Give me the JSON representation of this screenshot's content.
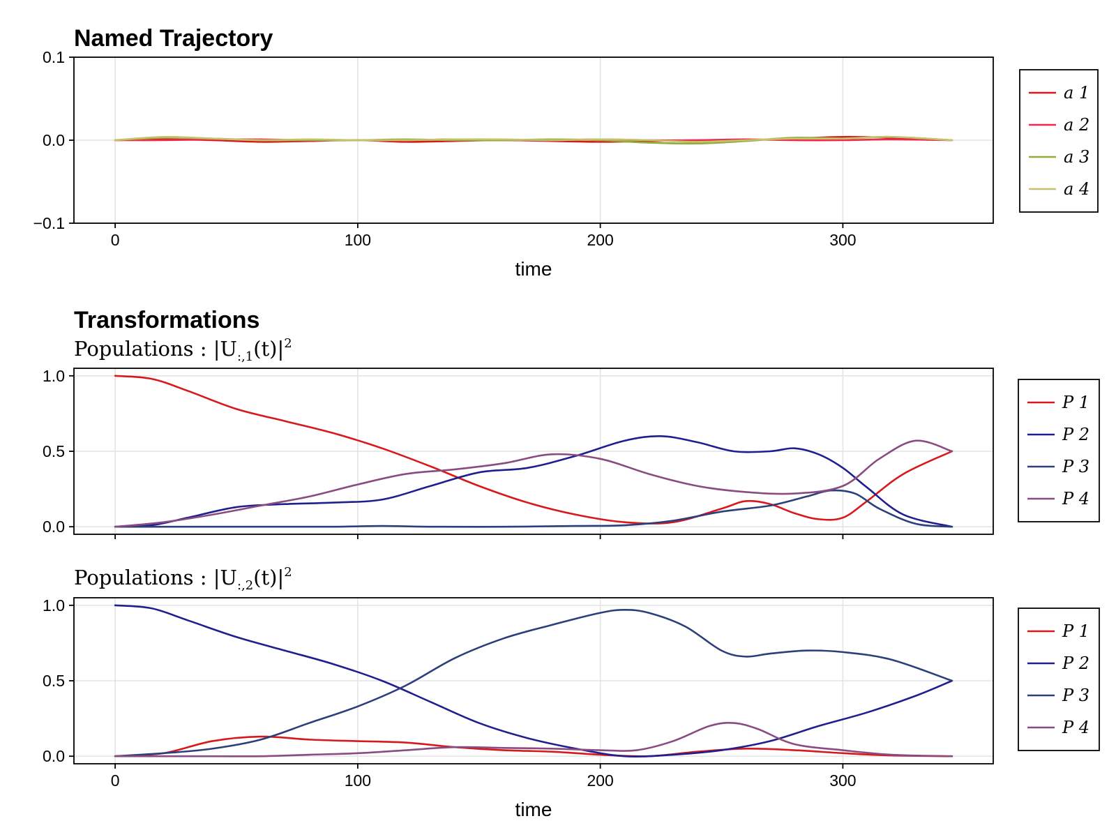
{
  "chart_data": [
    {
      "type": "line",
      "title": "Named Trajectory",
      "subtitle": "",
      "xlabel": "time",
      "ylabel": "",
      "xlim": [
        -17,
        362
      ],
      "ylim": [
        -0.1,
        0.1
      ],
      "xticks": [
        0,
        100,
        200,
        300
      ],
      "yticks": [
        -0.1,
        0.0,
        0.1
      ],
      "ytick_labels": [
        "−0.1",
        "0.0",
        "0.1"
      ],
      "show_xtick_labels": true,
      "grid": true,
      "legend_position": "right",
      "series": [
        {
          "name": "a 1",
          "color": "#d7191c",
          "x": [
            0,
            20,
            40,
            60,
            80,
            100,
            120,
            140,
            160,
            180,
            200,
            220,
            240,
            260,
            280,
            300,
            320,
            345
          ],
          "values": [
            0,
            0.001,
            0.0,
            -0.002,
            -0.001,
            0.0,
            -0.002,
            -0.001,
            0.0,
            -0.001,
            -0.002,
            -0.001,
            0.0,
            0.0,
            0.002,
            0.004,
            0.003,
            0.0
          ]
        },
        {
          "name": "a 2",
          "color": "#f0294f",
          "x": [
            0,
            20,
            40,
            60,
            80,
            100,
            120,
            140,
            160,
            180,
            200,
            220,
            240,
            260,
            280,
            300,
            320,
            345
          ],
          "values": [
            0,
            0.0,
            0.001,
            0.001,
            0.0,
            0.0,
            0.0,
            0.001,
            0.0,
            0.0,
            0.001,
            0.0,
            0.0,
            0.001,
            0.0,
            0.0,
            0.001,
            0.0
          ]
        },
        {
          "name": "a 3",
          "color": "#8fac3c",
          "x": [
            0,
            20,
            40,
            60,
            80,
            100,
            120,
            140,
            160,
            180,
            200,
            220,
            240,
            260,
            280,
            300,
            320,
            345
          ],
          "values": [
            0,
            0.003,
            0.002,
            0.0,
            0.0,
            0.0,
            0.001,
            0.0,
            0.0,
            0.001,
            0.0,
            -0.003,
            -0.004,
            -0.001,
            0.003,
            0.002,
            0.004,
            0.0
          ]
        },
        {
          "name": "a 4",
          "color": "#c4c26a",
          "x": [
            0,
            20,
            40,
            60,
            80,
            100,
            120,
            140,
            160,
            180,
            200,
            220,
            240,
            260,
            280,
            300,
            320,
            345
          ],
          "values": [
            0,
            0.004,
            0.002,
            0.0,
            0.001,
            0.0,
            0.0,
            0.001,
            0.001,
            0.0,
            0.001,
            0.0,
            -0.002,
            0.0,
            0.002,
            0.002,
            0.004,
            0.0
          ]
        }
      ]
    },
    {
      "type": "line",
      "title": "Transformations",
      "subtitle": "Populations :  |U:,1(t)|²",
      "xlabel": "",
      "ylabel": "",
      "xlim": [
        -17,
        362
      ],
      "ylim": [
        -0.05,
        1.05
      ],
      "xticks": [
        0,
        100,
        200,
        300
      ],
      "yticks": [
        0.0,
        0.5,
        1.0
      ],
      "ytick_labels": [
        "0.0",
        "0.5",
        "1.0"
      ],
      "show_xtick_labels": false,
      "grid": true,
      "legend_position": "right",
      "series": [
        {
          "name": "P 1",
          "color": "#d7191c",
          "x": [
            0,
            15,
            30,
            50,
            70,
            90,
            110,
            130,
            150,
            170,
            190,
            210,
            230,
            250,
            260,
            270,
            280,
            290,
            300,
            310,
            325,
            345
          ],
          "values": [
            1.0,
            0.98,
            0.9,
            0.78,
            0.7,
            0.62,
            0.52,
            0.4,
            0.27,
            0.16,
            0.08,
            0.03,
            0.03,
            0.12,
            0.17,
            0.15,
            0.09,
            0.05,
            0.06,
            0.17,
            0.35,
            0.5
          ]
        },
        {
          "name": "P 2",
          "color": "#1f1f8f",
          "x": [
            0,
            15,
            30,
            50,
            70,
            90,
            110,
            130,
            150,
            170,
            190,
            210,
            225,
            240,
            255,
            270,
            280,
            290,
            300,
            310,
            325,
            345
          ],
          "values": [
            0.0,
            0.01,
            0.06,
            0.13,
            0.15,
            0.16,
            0.18,
            0.27,
            0.36,
            0.39,
            0.47,
            0.57,
            0.6,
            0.56,
            0.5,
            0.5,
            0.52,
            0.48,
            0.39,
            0.26,
            0.08,
            0.0
          ]
        },
        {
          "name": "P 3",
          "color": "#2c3f7a",
          "x": [
            0,
            30,
            60,
            90,
            110,
            130,
            160,
            190,
            210,
            230,
            250,
            270,
            285,
            295,
            305,
            315,
            330,
            345
          ],
          "values": [
            0.0,
            0.0,
            0.0,
            0.0,
            0.005,
            0.0,
            0.0,
            0.005,
            0.01,
            0.04,
            0.1,
            0.14,
            0.2,
            0.24,
            0.22,
            0.12,
            0.02,
            0.0
          ]
        },
        {
          "name": "P 4",
          "color": "#8a4c80",
          "x": [
            0,
            20,
            40,
            60,
            80,
            100,
            120,
            140,
            160,
            180,
            200,
            220,
            240,
            260,
            280,
            300,
            315,
            330,
            345
          ],
          "values": [
            0.0,
            0.03,
            0.08,
            0.14,
            0.2,
            0.28,
            0.35,
            0.38,
            0.42,
            0.48,
            0.45,
            0.35,
            0.27,
            0.23,
            0.22,
            0.27,
            0.45,
            0.57,
            0.5
          ]
        }
      ]
    },
    {
      "type": "line",
      "title": "",
      "subtitle": "Populations :  |U:,2(t)|²",
      "xlabel": "time",
      "ylabel": "",
      "xlim": [
        -17,
        362
      ],
      "ylim": [
        -0.05,
        1.05
      ],
      "xticks": [
        0,
        100,
        200,
        300
      ],
      "yticks": [
        0.0,
        0.5,
        1.0
      ],
      "ytick_labels": [
        "0.0",
        "0.5",
        "1.0"
      ],
      "show_xtick_labels": true,
      "grid": true,
      "legend_position": "right",
      "series": [
        {
          "name": "P 1",
          "color": "#d7191c",
          "x": [
            0,
            20,
            40,
            60,
            80,
            100,
            120,
            140,
            160,
            180,
            200,
            220,
            240,
            260,
            280,
            300,
            320,
            345
          ],
          "values": [
            0.0,
            0.02,
            0.1,
            0.13,
            0.11,
            0.1,
            0.09,
            0.06,
            0.04,
            0.03,
            0.01,
            0.0,
            0.03,
            0.05,
            0.04,
            0.02,
            0.005,
            0.0
          ]
        },
        {
          "name": "P 2",
          "color": "#1f1f8f",
          "x": [
            0,
            15,
            30,
            50,
            70,
            90,
            110,
            130,
            150,
            170,
            190,
            210,
            230,
            250,
            270,
            290,
            310,
            330,
            345
          ],
          "values": [
            1.0,
            0.98,
            0.9,
            0.79,
            0.7,
            0.61,
            0.5,
            0.36,
            0.22,
            0.12,
            0.05,
            0.0,
            0.01,
            0.04,
            0.1,
            0.2,
            0.29,
            0.4,
            0.5
          ]
        },
        {
          "name": "P 3",
          "color": "#2c3f7a",
          "x": [
            0,
            20,
            40,
            60,
            80,
            100,
            120,
            140,
            160,
            180,
            200,
            210,
            220,
            235,
            250,
            260,
            270,
            285,
            300,
            320,
            345
          ],
          "values": [
            0.0,
            0.02,
            0.05,
            0.11,
            0.22,
            0.33,
            0.47,
            0.65,
            0.78,
            0.87,
            0.95,
            0.97,
            0.95,
            0.86,
            0.7,
            0.66,
            0.68,
            0.7,
            0.69,
            0.64,
            0.5
          ]
        },
        {
          "name": "P 4",
          "color": "#8a4c80",
          "x": [
            0,
            30,
            60,
            80,
            100,
            120,
            140,
            160,
            180,
            200,
            215,
            230,
            245,
            255,
            265,
            280,
            300,
            320,
            345
          ],
          "values": [
            0.0,
            0.0,
            0.0,
            0.01,
            0.02,
            0.04,
            0.06,
            0.055,
            0.05,
            0.04,
            0.04,
            0.1,
            0.2,
            0.22,
            0.18,
            0.08,
            0.04,
            0.01,
            0.0
          ]
        }
      ]
    }
  ]
}
